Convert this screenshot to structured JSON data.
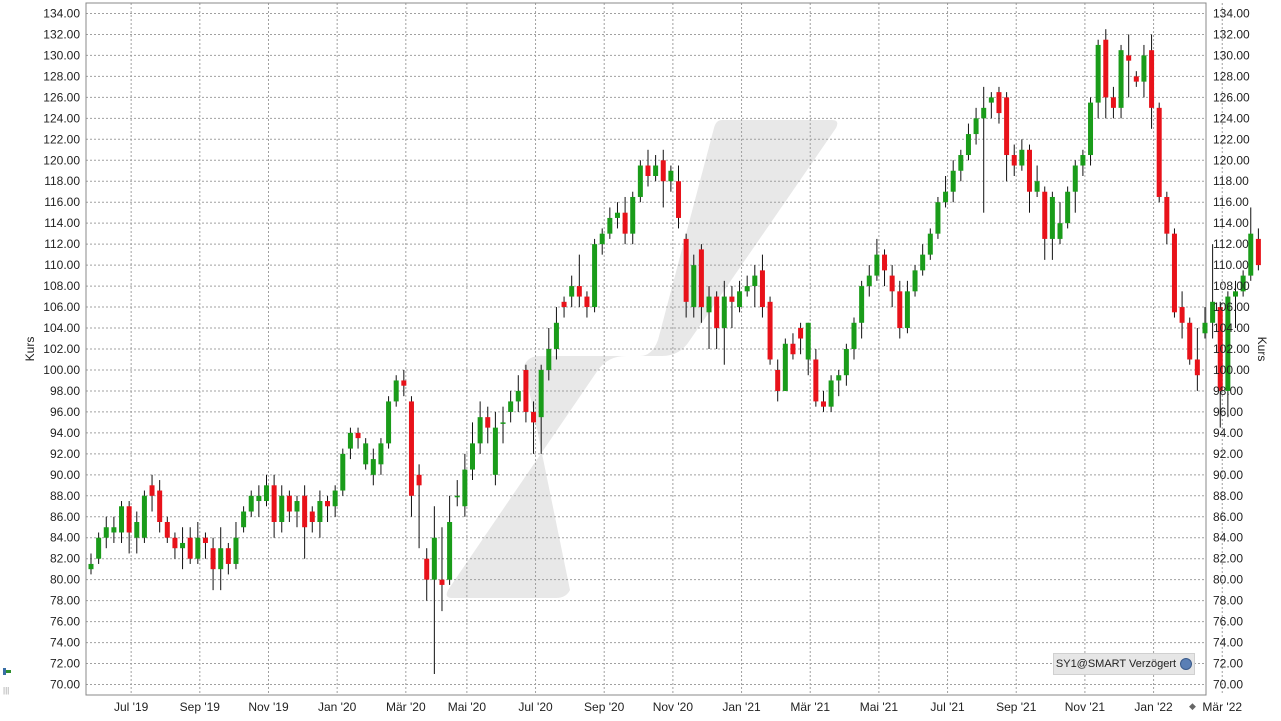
{
  "colors": {
    "up": "#1a9c1a",
    "down": "#e8121a",
    "grid": "#a0a0a0",
    "watermark": "#e8e8e8"
  },
  "source_label": "SY1@SMART Verzögert",
  "chart_data": {
    "type": "candlestick",
    "title": "",
    "ylabel_left": "Kurs",
    "ylabel_right": "Kurs",
    "ylim": [
      69,
      135
    ],
    "yticks": [
      "70.00",
      "72.00",
      "74.00",
      "76.00",
      "78.00",
      "80.00",
      "82.00",
      "84.00",
      "86.00",
      "88.00",
      "90.00",
      "92.00",
      "94.00",
      "96.00",
      "98.00",
      "100.00",
      "102.00",
      "104.00",
      "106.00",
      "108.00",
      "110.00",
      "112.00",
      "114.00",
      "116.00",
      "118.00",
      "120.00",
      "122.00",
      "124.00",
      "126.00",
      "128.00",
      "130.00",
      "132.00",
      "134.00"
    ],
    "x_labels": [
      "Jul '19",
      "Sep '19",
      "Nov '19",
      "Jan '20",
      "Mär '20",
      "Mai '20",
      "Jul '20",
      "Sep '20",
      "Nov '20",
      "Jan '21",
      "Mär '21",
      "Mai '21",
      "Jul '21",
      "Sep '21",
      "Nov '21",
      "Jan '22",
      "Mär '22"
    ],
    "x_label_weeks": [
      5,
      14,
      23,
      32,
      41,
      49,
      58,
      67,
      76,
      85,
      94,
      103,
      112,
      121,
      130,
      139,
      148
    ],
    "grid": true,
    "candles": [
      [
        81.0,
        81.5,
        82.5,
        80.5
      ],
      [
        82.0,
        84.0,
        84.5,
        81.5
      ],
      [
        84.0,
        85.0,
        86.0,
        83.0
      ],
      [
        84.5,
        85.0,
        86.0,
        83.5
      ],
      [
        84.5,
        87.0,
        87.5,
        83.5
      ],
      [
        87.0,
        84.5,
        87.5,
        82.5
      ],
      [
        84.0,
        85.5,
        86.5,
        82.5
      ],
      [
        84.0,
        88.0,
        88.5,
        83.5
      ],
      [
        89.0,
        88.0,
        90.0,
        86.5
      ],
      [
        88.5,
        85.5,
        89.5,
        84.5
      ],
      [
        85.5,
        84.0,
        86.0,
        83.5
      ],
      [
        84.0,
        83.0,
        84.5,
        82.0
      ],
      [
        83.0,
        83.5,
        85.0,
        81.0
      ],
      [
        84.0,
        82.0,
        85.0,
        81.5
      ],
      [
        82.0,
        84.0,
        85.5,
        81.5
      ],
      [
        84.0,
        83.5,
        84.5,
        82.0
      ],
      [
        83.0,
        81.0,
        84.0,
        79.0
      ],
      [
        81.0,
        83.0,
        85.0,
        79.0
      ],
      [
        83.0,
        81.5,
        83.5,
        80.5
      ],
      [
        81.5,
        84.0,
        85.5,
        81.0
      ],
      [
        85.0,
        86.5,
        87.0,
        84.5
      ],
      [
        86.5,
        88.0,
        88.5,
        86.0
      ],
      [
        87.5,
        88.0,
        89.0,
        86.0
      ],
      [
        87.5,
        89.0,
        90.0,
        87.0
      ],
      [
        89.0,
        85.5,
        90.0,
        84.0
      ],
      [
        85.5,
        88.0,
        89.0,
        84.5
      ],
      [
        88.0,
        86.5,
        88.5,
        85.5
      ],
      [
        86.5,
        87.5,
        88.0,
        85.0
      ],
      [
        88.0,
        85.0,
        89.0,
        82.0
      ],
      [
        86.5,
        85.5,
        87.0,
        84.5
      ],
      [
        85.5,
        87.5,
        88.5,
        84.0
      ],
      [
        87.5,
        87.0,
        88.0,
        85.5
      ],
      [
        87.0,
        88.5,
        89.0,
        86.0
      ],
      [
        88.5,
        92.0,
        92.5,
        88.0
      ],
      [
        92.5,
        94.0,
        94.5,
        91.5
      ],
      [
        94.0,
        93.5,
        94.5,
        92.5
      ],
      [
        91.0,
        93.0,
        93.5,
        90.5
      ],
      [
        90.0,
        91.5,
        92.5,
        89.0
      ],
      [
        91.0,
        93.0,
        93.5,
        90.0
      ],
      [
        93.0,
        97.0,
        97.5,
        92.5
      ],
      [
        97.0,
        99.0,
        99.5,
        96.5
      ],
      [
        99.0,
        98.5,
        100.0,
        97.5
      ],
      [
        97.0,
        88.0,
        97.5,
        86.0
      ],
      [
        90.0,
        89.0,
        91.0,
        83.0
      ],
      [
        82.0,
        80.0,
        83.0,
        78.0
      ],
      [
        80.0,
        84.0,
        87.0,
        71.0
      ],
      [
        80.0,
        79.5,
        85.0,
        77.0
      ],
      [
        80.0,
        85.5,
        88.0,
        79.5
      ],
      [
        88.0,
        88.0,
        89.5,
        87.0
      ],
      [
        87.0,
        90.5,
        92.0,
        86.0
      ],
      [
        90.5,
        93.0,
        95.0,
        89.5
      ],
      [
        93.0,
        95.5,
        97.0,
        92.0
      ],
      [
        95.5,
        94.5,
        96.5,
        93.0
      ],
      [
        90.0,
        94.5,
        96.0,
        89.0
      ],
      [
        95.0,
        95.0,
        96.5,
        93.0
      ],
      [
        96.0,
        97.0,
        98.0,
        95.0
      ],
      [
        97.0,
        98.0,
        99.5,
        96.0
      ],
      [
        100.0,
        96.0,
        100.5,
        95.0
      ],
      [
        96.0,
        95.0,
        97.0,
        92.0
      ],
      [
        95.5,
        100.0,
        100.5,
        92.0
      ],
      [
        100.0,
        102.0,
        104.0,
        99.0
      ],
      [
        102.0,
        104.5,
        106.0,
        101.0
      ],
      [
        106.5,
        106.0,
        107.0,
        105.0
      ],
      [
        107.0,
        108.0,
        109.0,
        106.0
      ],
      [
        108.0,
        107.0,
        111.0,
        106.0
      ],
      [
        107.0,
        106.0,
        107.5,
        105.0
      ],
      [
        106.0,
        112.0,
        112.5,
        105.5
      ],
      [
        112.0,
        113.0,
        113.5,
        111.0
      ],
      [
        113.0,
        114.5,
        115.5,
        112.5
      ],
      [
        114.5,
        115.0,
        116.0,
        113.5
      ],
      [
        115.0,
        113.0,
        116.5,
        112.0
      ],
      [
        113.0,
        116.5,
        117.0,
        112.0
      ],
      [
        116.5,
        119.5,
        120.0,
        116.0
      ],
      [
        119.5,
        118.5,
        121.0,
        117.5
      ],
      [
        118.5,
        119.5,
        120.5,
        118.0
      ],
      [
        120.0,
        118.0,
        121.0,
        115.5
      ],
      [
        118.0,
        119.0,
        119.5,
        117.0
      ],
      [
        118.0,
        114.5,
        119.5,
        113.5
      ],
      [
        112.5,
        106.5,
        113.0,
        105.0
      ],
      [
        106.0,
        110.0,
        111.0,
        105.0
      ],
      [
        111.5,
        106.0,
        112.0,
        104.5
      ],
      [
        105.5,
        107.0,
        108.0,
        102.0
      ],
      [
        107.0,
        104.0,
        107.5,
        102.0
      ],
      [
        104.0,
        107.0,
        108.5,
        100.5
      ],
      [
        107.0,
        106.5,
        108.0,
        104.0
      ],
      [
        106.0,
        107.5,
        108.5,
        105.5
      ],
      [
        107.5,
        108.0,
        109.0,
        107.0
      ],
      [
        108.0,
        109.0,
        110.0,
        106.0
      ],
      [
        109.5,
        106.0,
        111.0,
        105.0
      ],
      [
        106.5,
        101.0,
        107.0,
        100.5
      ],
      [
        100.0,
        98.0,
        101.0,
        97.0
      ],
      [
        98.0,
        102.5,
        103.0,
        98.0
      ],
      [
        102.5,
        101.5,
        103.5,
        101.0
      ],
      [
        104.0,
        103.0,
        104.5,
        101.5
      ],
      [
        101.0,
        104.5,
        104.5,
        99.5
      ],
      [
        101.0,
        97.0,
        102.0,
        96.5
      ],
      [
        97.0,
        96.5,
        98.0,
        96.0
      ],
      [
        96.5,
        99.0,
        99.5,
        96.0
      ],
      [
        99.0,
        99.5,
        100.0,
        97.5
      ],
      [
        99.5,
        102.0,
        102.5,
        98.5
      ],
      [
        102.0,
        104.5,
        105.0,
        101.0
      ],
      [
        104.5,
        108.0,
        108.5,
        103.0
      ],
      [
        108.0,
        109.0,
        110.0,
        107.0
      ],
      [
        109.0,
        111.0,
        112.5,
        108.5
      ],
      [
        111.0,
        109.5,
        111.5,
        108.0
      ],
      [
        109.0,
        107.5,
        110.0,
        106.0
      ],
      [
        107.5,
        104.0,
        108.5,
        103.0
      ],
      [
        104.0,
        107.5,
        108.5,
        103.5
      ],
      [
        107.5,
        109.5,
        110.0,
        107.0
      ],
      [
        109.5,
        111.0,
        112.0,
        109.0
      ],
      [
        111.0,
        113.0,
        113.5,
        110.5
      ],
      [
        113.0,
        116.0,
        116.5,
        112.5
      ],
      [
        116.0,
        117.0,
        118.5,
        115.5
      ],
      [
        117.0,
        119.0,
        120.0,
        116.0
      ],
      [
        119.0,
        120.5,
        121.0,
        118.0
      ],
      [
        120.5,
        122.5,
        123.5,
        120.0
      ],
      [
        122.5,
        124.0,
        125.0,
        121.5
      ],
      [
        124.0,
        125.0,
        127.0,
        115.0
      ],
      [
        125.5,
        126.0,
        126.5,
        124.0
      ],
      [
        126.5,
        124.5,
        127.0,
        123.5
      ],
      [
        126.0,
        120.5,
        126.5,
        118.0
      ],
      [
        120.5,
        119.5,
        121.5,
        118.5
      ],
      [
        119.5,
        121.0,
        122.0,
        119.0
      ],
      [
        121.0,
        117.0,
        121.5,
        115.0
      ],
      [
        117.0,
        118.0,
        119.5,
        116.5
      ],
      [
        117.0,
        112.5,
        117.5,
        110.5
      ],
      [
        112.5,
        116.5,
        117.0,
        110.5
      ],
      [
        112.5,
        114.0,
        116.0,
        112.0
      ],
      [
        114.0,
        117.0,
        117.5,
        113.5
      ],
      [
        117.0,
        119.5,
        120.0,
        115.0
      ],
      [
        119.5,
        120.5,
        121.0,
        118.5
      ],
      [
        120.5,
        125.5,
        126.0,
        119.5
      ],
      [
        125.5,
        131.0,
        131.5,
        124.0
      ],
      [
        131.5,
        126.0,
        132.5,
        124.0
      ],
      [
        126.0,
        125.0,
        127.0,
        124.0
      ],
      [
        125.0,
        130.5,
        131.0,
        124.0
      ],
      [
        130.0,
        129.5,
        132.0,
        126.0
      ],
      [
        128.0,
        127.5,
        128.5,
        127.0
      ],
      [
        127.5,
        130.0,
        131.0,
        126.0
      ],
      [
        130.5,
        125.0,
        132.0,
        123.0
      ],
      [
        125.0,
        116.5,
        125.5,
        116.0
      ],
      [
        116.5,
        113.0,
        117.0,
        112.0
      ],
      [
        113.0,
        105.5,
        113.5,
        105.0
      ],
      [
        106.0,
        104.5,
        107.5,
        103.0
      ],
      [
        104.5,
        101.0,
        105.0,
        100.5
      ],
      [
        101.0,
        99.5,
        104.0,
        98.0
      ],
      [
        103.5,
        104.5,
        106.0,
        103.0
      ],
      [
        104.5,
        106.5,
        112.0,
        103.0
      ],
      [
        106.0,
        98.0,
        106.5,
        94.5
      ],
      [
        98.0,
        107.0,
        107.5,
        95.5
      ],
      [
        107.0,
        107.5,
        108.5,
        104.0
      ],
      [
        107.5,
        109.0,
        109.5,
        107.0
      ],
      [
        109.0,
        113.0,
        115.5,
        108.5
      ],
      [
        112.5,
        110.0,
        113.5,
        109.5
      ]
    ]
  }
}
